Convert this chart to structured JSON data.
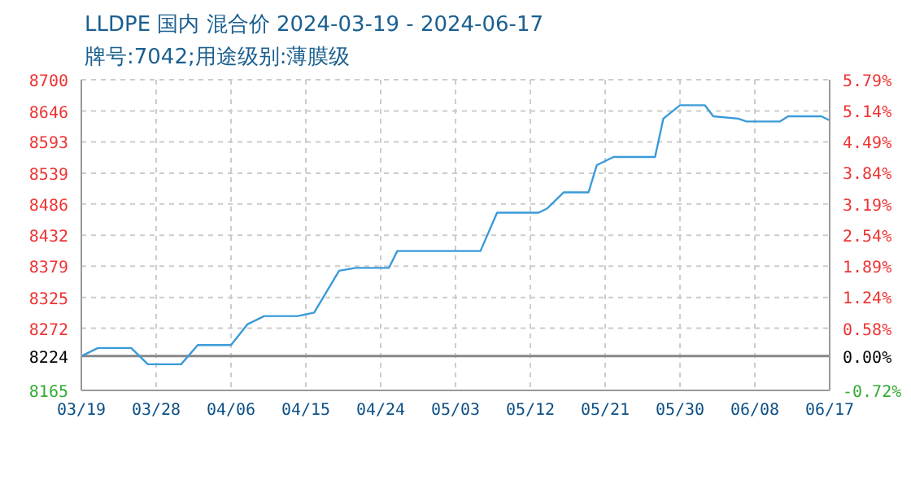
{
  "chart_data": {
    "type": "line",
    "title": "LLDPE 国内 混合价 2024-03-19 - 2024-06-17",
    "subtitle": "牌号:7042;用途级别:薄膜级",
    "x": [
      "2024-03-19",
      "2024-03-21",
      "2024-03-25",
      "2024-03-27",
      "2024-03-31",
      "2024-04-02",
      "2024-04-06",
      "2024-04-08",
      "2024-04-10",
      "2024-04-14",
      "2024-04-16",
      "2024-04-19",
      "2024-04-21",
      "2024-04-25",
      "2024-04-26",
      "2024-05-06",
      "2024-05-08",
      "2024-05-13",
      "2024-05-14",
      "2024-05-16",
      "2024-05-19",
      "2024-05-20",
      "2024-05-22",
      "2024-05-27",
      "2024-05-28",
      "2024-05-30",
      "2024-06-02",
      "2024-06-03",
      "2024-06-06",
      "2024-06-07",
      "2024-06-11",
      "2024-06-12",
      "2024-06-16",
      "2024-06-17"
    ],
    "series": [
      {
        "color": "#3a9ad9",
        "values": [
          8224,
          8238,
          8238,
          8210,
          8210,
          8243,
          8243,
          8279,
          8293,
          8293,
          8299,
          8371,
          8376,
          8376,
          8405,
          8405,
          8471,
          8471,
          8478,
          8506,
          8506,
          8553,
          8567,
          8567,
          8633,
          8656,
          8656,
          8637,
          8633,
          8628,
          8628,
          8637,
          8637,
          8630
        ]
      }
    ],
    "xlim": [
      "2024-03-19",
      "2024-06-17"
    ],
    "xticks": [
      {
        "value": "2024-03-19",
        "label": "03/19"
      },
      {
        "value": "2024-03-28",
        "label": "03/28"
      },
      {
        "value": "2024-04-06",
        "label": "04/06"
      },
      {
        "value": "2024-04-15",
        "label": "04/15"
      },
      {
        "value": "2024-04-24",
        "label": "04/24"
      },
      {
        "value": "2024-05-03",
        "label": "05/03"
      },
      {
        "value": "2024-05-12",
        "label": "05/12"
      },
      {
        "value": "2024-05-21",
        "label": "05/21"
      },
      {
        "value": "2024-05-30",
        "label": "05/30"
      },
      {
        "value": "2024-06-08",
        "label": "06/08"
      },
      {
        "value": "2024-06-17",
        "label": "06/17"
      }
    ],
    "ylim": [
      8165,
      8700
    ],
    "yticks": [
      8165,
      8224,
      8272,
      8325,
      8379,
      8432,
      8486,
      8539,
      8593,
      8646,
      8700
    ],
    "y2lim": [
      -0.72,
      5.79
    ],
    "y2ticks": [
      {
        "value": -0.72,
        "label": "-0.72%"
      },
      {
        "value": 0,
        "label": "0.00%"
      },
      {
        "value": 0.58,
        "label": "0.58%"
      },
      {
        "value": 1.24,
        "label": "1.24%"
      },
      {
        "value": 1.89,
        "label": "1.89%"
      },
      {
        "value": 2.54,
        "label": "2.54%"
      },
      {
        "value": 3.19,
        "label": "3.19%"
      },
      {
        "value": 3.84,
        "label": "3.84%"
      },
      {
        "value": 4.49,
        "label": "4.49%"
      },
      {
        "value": 5.14,
        "label": "5.14%"
      },
      {
        "value": 5.79,
        "label": "5.79%"
      }
    ],
    "ref_lines": [
      {
        "axis": "y",
        "value": 8224,
        "color": "#888888"
      }
    ],
    "grid": true,
    "legend": false,
    "marker": "none",
    "line_style": "solid"
  }
}
